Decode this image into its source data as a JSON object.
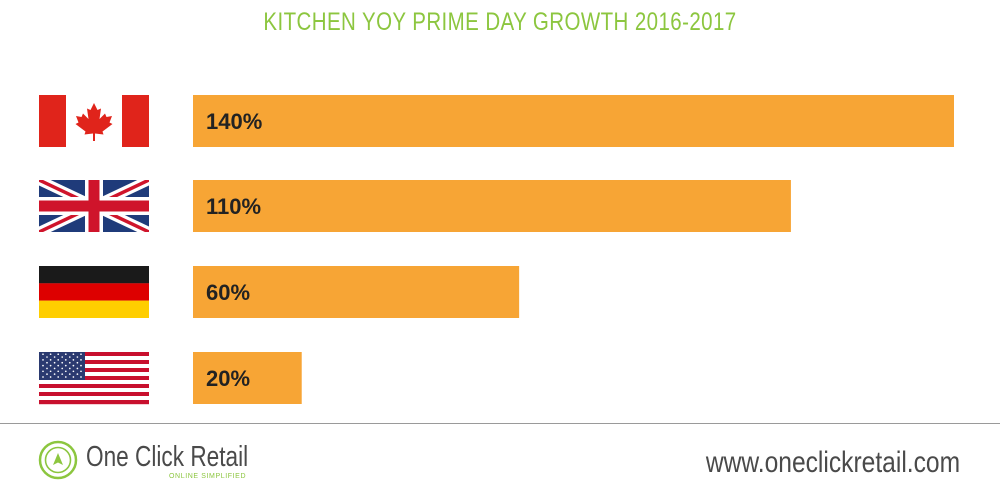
{
  "chart_data": {
    "type": "bar",
    "orientation": "horizontal",
    "title": "KITCHEN YOY PRIME DAY GROWTH 2016-2017",
    "categories": [
      "Canada",
      "United Kingdom",
      "Germany",
      "United States"
    ],
    "values": [
      140,
      110,
      60,
      20
    ],
    "value_labels": [
      "140%",
      "110%",
      "60%",
      "20%"
    ],
    "category_icons": [
      "canada-flag-icon",
      "uk-flag-icon",
      "germany-flag-icon",
      "usa-flag-icon"
    ],
    "xlim": [
      0,
      140
    ],
    "bar_color": "#f7a535",
    "grid": false,
    "legend": "none"
  },
  "footer": {
    "brand_name": "One Click Retail",
    "brand_tagline": "ONLINE SIMPLIFIED",
    "website": "www.oneclickretail.com",
    "brand_color": "#8cc63f"
  }
}
